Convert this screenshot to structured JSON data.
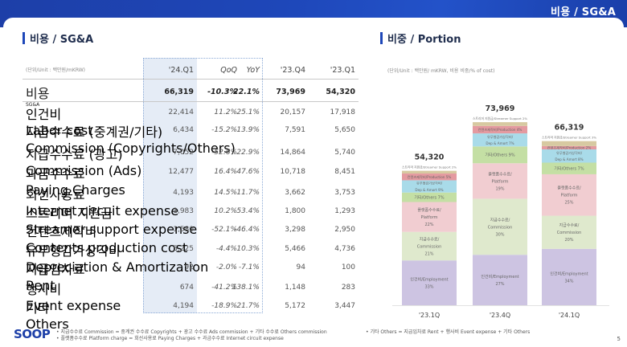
{
  "banner": {
    "title": "비용 / SG&A"
  },
  "left_section": {
    "title": "비용 / SG&A",
    "unit": "(단위/Unit : 백만원/mKRW)",
    "columns": [
      "'24.Q1",
      "QoQ",
      "YoY",
      "'23.Q4",
      "'23.Q1"
    ],
    "rows": [
      {
        "ko": "비용",
        "en": "SG&A",
        "q124": "66,319",
        "qoq": "-10.3%",
        "yoy": "22.1%",
        "q423": "73,969",
        "q123": "54,320",
        "bold": true
      },
      {
        "ko": "인건비",
        "en": "Labor cost",
        "q124": "22,414",
        "qoq": "11.2%",
        "yoy": "25.1%",
        "q423": "20,157",
        "q123": "17,918"
      },
      {
        "ko": "지급수수료 (중계권/기타)",
        "en": "Commission (Copyrights/Others)",
        "q124": "6,434",
        "qoq": "-15.2%",
        "yoy": "13.9%",
        "q423": "7,591",
        "q123": "5,650"
      },
      {
        "ko": "지급수수료 (광고)",
        "en": "Commission (Ads)",
        "q124": "7,052",
        "qoq": "-52.6%",
        "yoy": "22.9%",
        "q423": "14,864",
        "q123": "5,740"
      },
      {
        "ko": "과금수수료",
        "en": "Paying Charges",
        "q124": "12,477",
        "qoq": "16.4%",
        "yoy": "47.6%",
        "q423": "10,718",
        "q123": "8,451"
      },
      {
        "ko": "회선사용료",
        "en": "Internet circuit expense",
        "q124": "4,193",
        "qoq": "14.5%",
        "yoy": "11.7%",
        "q423": "3,662",
        "q123": "3,753"
      },
      {
        "ko": "스트리머 지원금",
        "en": "Streamer support expense",
        "q124": "1,983",
        "qoq": "10.2%",
        "yoy": "53.4%",
        "q423": "1,800",
        "q123": "1,293"
      },
      {
        "ko": "컨텐츠제작비",
        "en": "Contents production cost",
        "q124": "1,580",
        "qoq": "-52.1%",
        "yoy": "-46.4%",
        "q423": "3,298",
        "q123": "2,950"
      },
      {
        "ko": "유무형감가상각비",
        "en": "Depreciation & Amortization",
        "q124": "5,225",
        "qoq": "-4.4%",
        "yoy": "10.3%",
        "q423": "5,466",
        "q123": "4,736"
      },
      {
        "ko": "지급임차료",
        "en": "Rent",
        "q124": "92",
        "qoq": "-2.0%",
        "yoy": "-7.1%",
        "q423": "94",
        "q123": "100"
      },
      {
        "ko": "행사비",
        "en": "Event expense",
        "q124": "674",
        "qoq": "-41.2%",
        "yoy": "138.1%",
        "q423": "1,148",
        "q123": "283"
      },
      {
        "ko": "기타",
        "en": "Others",
        "q124": "4,194",
        "qoq": "-18.9%",
        "yoy": "21.7%",
        "q423": "5,172",
        "q123": "3,447"
      }
    ]
  },
  "right_section": {
    "title": "비중 / Portion",
    "unit": "(단위/Unit : 백만원/ mKRW, 비용 비중/% of cost)"
  },
  "chart_data": {
    "type": "bar",
    "stacked": true,
    "title": "비중 / Portion",
    "xlabel": "",
    "ylabel": "% of cost",
    "categories": [
      "'23.1Q",
      "'23.4Q",
      "'24.1Q"
    ],
    "totals": [
      "54,320",
      "73,969",
      "66,319"
    ],
    "total_values": [
      54320,
      73969,
      66319
    ],
    "series": [
      {
        "name": "인건비/Employment",
        "color": "#cdc4e2",
        "values": [
          33,
          27,
          34
        ]
      },
      {
        "name": "지급수수료/Commission",
        "color": "#dfe9cd",
        "values": [
          21,
          30,
          20
        ]
      },
      {
        "name": "플랫폼수수료/Platform",
        "color": "#f1cdd1",
        "values": [
          22,
          19,
          25
        ]
      },
      {
        "name": "기타/Others",
        "color": "#c4dfa4",
        "values": [
          7,
          9,
          7
        ]
      },
      {
        "name": "유무형감가상각비/Dep & Amort",
        "color": "#a9dbe9",
        "values": [
          9,
          7,
          8
        ]
      },
      {
        "name": "컨텐츠제작비/Production",
        "color": "#e49aa0",
        "values": [
          5,
          4,
          2
        ]
      },
      {
        "name": "스트리머 지원금/Streamer Support",
        "color": "#d7c9a1",
        "values": [
          2,
          2,
          3
        ]
      }
    ],
    "segment_labels": [
      [
        "인건비/Employment 33%",
        "지급수수료/Commission 21%",
        "플랫폼수수료/Platform 22%",
        "기타/Others 7%",
        "유무형감가상각비/Dep & Amort 9%",
        "컨텐츠제작비/Production 5%",
        "스트리머 지원금/Streamer Support 2%"
      ],
      [
        "인건비/Employment 27%",
        "지급수수료/Commission 30%",
        "플랫폼수수료/Platform 19%",
        "기타/Others 9%",
        "유무형감가상각비/Dep & Amort 7%",
        "컨텐츠제작비/Production 4%",
        "스트리머 지원금/Streamer Support 2%"
      ],
      [
        "인건비/Employment 34%",
        "지급수수료/Commission 20%",
        "플랫폼수수료/Platform 25%",
        "기타/Others 7%",
        "유무형감가상각비/Dep & Amort 8%",
        "컨텐츠제작비/Production 2%",
        "스트리머 지원금/Streamer Support 3%"
      ]
    ],
    "legend": "none",
    "grid": false
  },
  "footer": {
    "logo": "SOOP",
    "notes": [
      "•  지급수수료 Commission = 중계권 수수료 Copyrights + 광고 수수료  Ads commission + 기타 수수료 Others commission",
      "•  플랫폼수수료 Platform charge = 회선사용료 Paying Charges + 과금수수료 Internet circuit expense",
      "•  기타 Others = 지급임차료 Rent + 행사비 Event expense + 기타 Others"
    ],
    "page_number": "5"
  }
}
